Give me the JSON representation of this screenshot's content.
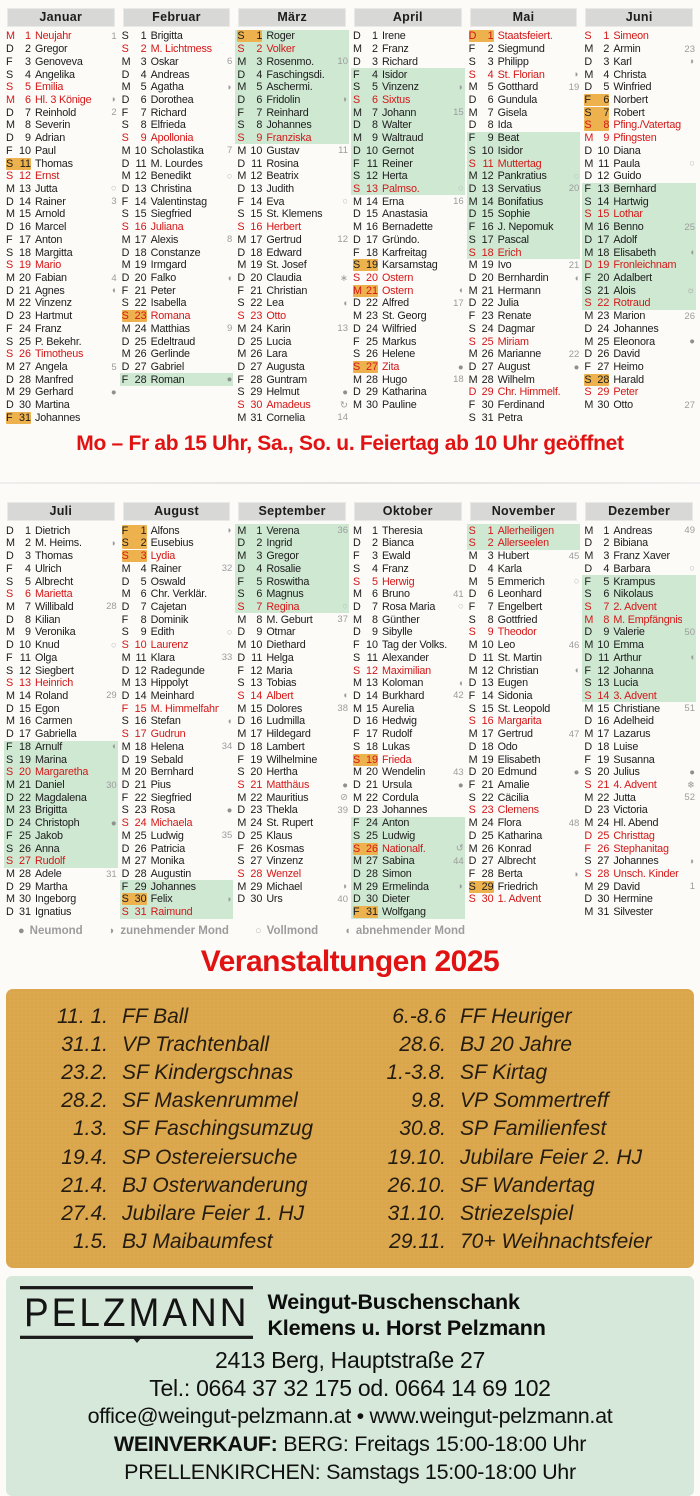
{
  "calendar": {
    "year": 2025,
    "months": [
      {
        "name": "Januar",
        "days": [
          "Neujahr",
          "Gregor",
          "Genoveva",
          "Angelika",
          "Emilia",
          "Hl. 3 Könige",
          "Reinhold",
          "Severin",
          "Adrian",
          "Paul",
          "Thomas",
          "Ernst",
          "Jutta",
          "Rainer",
          "Arnold",
          "Marcel",
          "Anton",
          "Margitta",
          "Mario",
          "Fabian",
          "Agnes",
          "Vinzenz",
          "Hartmut",
          "Franz",
          "P. Bekehr.",
          "Timotheus",
          "Angela",
          "Manfred",
          "Gerhard",
          "Martina",
          "Johannes"
        ],
        "red": [
          1,
          5,
          6,
          12,
          19,
          26
        ],
        "hl": [
          11,
          31
        ],
        "green": null,
        "weeks": {
          "1": 1,
          "7": 2,
          "14": 3,
          "20": 4,
          "27": 5
        },
        "sym": {
          "6": "wx",
          "13": "fm",
          "21": "wn",
          "29": "nm"
        }
      },
      {
        "name": "Februar",
        "days": [
          "Brigitta",
          "M. Lichtmess",
          "Oskar",
          "Andreas",
          "Agatha",
          "Dorothea",
          "Richard",
          "Elfrieda",
          "Apollonia",
          "Scholastika",
          "M. Lourdes",
          "Benedikt",
          "Christina",
          "Valentinstag",
          "Siegfried",
          "Juliana",
          "Alexis",
          "Constanze",
          "Irmgard",
          "Falko",
          "Peter",
          "Isabella",
          "Romana",
          "Matthias",
          "Edeltraud",
          "Gerlinde",
          "Gabriel",
          "Roman"
        ],
        "red": [
          2,
          9,
          16,
          23
        ],
        "hl": [
          23
        ],
        "green": [
          28,
          28
        ],
        "weeks": {
          "3": 6,
          "10": 7,
          "17": 8,
          "24": 9
        },
        "sym": {
          "5": "wx",
          "12": "fm",
          "20": "wn",
          "28": "nm"
        }
      },
      {
        "name": "März",
        "days": [
          "Roger",
          "Volker",
          "Rosenmo.",
          "Faschingsdi.",
          "Aschermi.",
          "Fridolin",
          "Reinhard",
          "Johannes",
          "Franziska",
          "Gustav",
          "Rosina",
          "Beatrix",
          "Judith",
          "Eva",
          "St. Klemens",
          "Herbert",
          "Gertrud",
          "Edward",
          "St. Josef",
          "Claudia",
          "Christian",
          "Lea",
          "Otto",
          "Karin",
          "Lucia",
          "Lara",
          "Augusta",
          "Guntram",
          "Helmut",
          "Amadeus",
          "Cornelia"
        ],
        "red": [
          2,
          9,
          16,
          23,
          30
        ],
        "hl": [
          1
        ],
        "green": [
          1,
          9
        ],
        "weeks": {
          "3": 10,
          "10": 11,
          "17": 12,
          "24": 13,
          "31": 14
        },
        "sym": {
          "6": "wx",
          "14": "fm",
          "20": "sp",
          "22": "wn",
          "29": "nm",
          "30": "cf"
        }
      },
      {
        "name": "April",
        "days": [
          "Irene",
          "Franz",
          "Richard",
          "Isidor",
          "Vinzenz",
          "Sixtus",
          "Johann",
          "Walter",
          "Waltraud",
          "Gernot",
          "Reiner",
          "Herta",
          "Palmso.",
          "Erna",
          "Anastasia",
          "Bernadette",
          "Gründo.",
          "Karfreitag",
          "Karsamstag",
          "Ostern",
          "Ostern",
          "Alfred",
          "St. Georg",
          "Wilfried",
          "Markus",
          "Helene",
          "Zita",
          "Hugo",
          "Katharina",
          "Pauline"
        ],
        "red": [
          6,
          13,
          20,
          21,
          27
        ],
        "hl": [
          19,
          21,
          27
        ],
        "green": [
          4,
          13
        ],
        "weeks": {
          "7": 15,
          "14": 16,
          "22": 17,
          "28": 18
        },
        "sym": {
          "5": "wx",
          "13": "fm",
          "21": "wn",
          "27": "nm"
        }
      },
      {
        "name": "Mai",
        "days": [
          "Staatsfeiert.",
          "Siegmund",
          "Philipp",
          "St. Florian",
          "Gotthard",
          "Gundula",
          "Gisela",
          "Ida",
          "Beat",
          "Isidor",
          "Muttertag",
          "Pankratius",
          "Servatius",
          "Bonifatius",
          "Sophie",
          "J. Nepomuk",
          "Pascal",
          "Erich",
          "Ivo",
          "Bernhardin",
          "Hermann",
          "Julia",
          "Renate",
          "Dagmar",
          "Miriam",
          "Marianne",
          "August",
          "Wilhelm",
          "Chr. Himmelf.",
          "Ferdinand",
          "Petra"
        ],
        "red": [
          1,
          4,
          11,
          18,
          25,
          29
        ],
        "hl": [
          1
        ],
        "green": [
          9,
          18
        ],
        "weeks": {
          "5": 19,
          "13": 20,
          "19": 21,
          "26": 22
        },
        "sym": {
          "4": "wx",
          "12": "fm",
          "20": "wn",
          "27": "nm"
        }
      },
      {
        "name": "Juni",
        "days": [
          "Simeon",
          "Armin",
          "Karl",
          "Christa",
          "Winfried",
          "Norbert",
          "Robert",
          "Pfing./Vatertag",
          "Pfingsten",
          "Diana",
          "Paula",
          "Guido",
          "Bernhard",
          "Hartwig",
          "Lothar",
          "Benno",
          "Adolf",
          "Elisabeth",
          "Fronleichnam",
          "Adalbert",
          "Alois",
          "Rotraud",
          "Marion",
          "Johannes",
          "Eleonora",
          "David",
          "Heimo",
          "Harald",
          "Peter",
          "Otto"
        ],
        "red": [
          1,
          8,
          9,
          15,
          19,
          22,
          29
        ],
        "hl": [
          6,
          7,
          8,
          28
        ],
        "green": [
          13,
          22
        ],
        "weeks": {
          "2": 23,
          "16": 25,
          "23": 26,
          "30": 27
        },
        "sym": {
          "3": "wx",
          "11": "fm",
          "18": "wn",
          "21": "su",
          "25": "nm"
        }
      },
      {
        "name": "Juli",
        "days": [
          "Dietrich",
          "M. Heims.",
          "Thomas",
          "Ulrich",
          "Albrecht",
          "Marietta",
          "Willibald",
          "Kilian",
          "Veronika",
          "Knud",
          "Olga",
          "Siegbert",
          "Heinrich",
          "Roland",
          "Egon",
          "Carmen",
          "Gabriella",
          "Arnulf",
          "Marina",
          "Margaretha",
          "Daniel",
          "Magdalena",
          "Brigitta",
          "Christoph",
          "Jakob",
          "Anna",
          "Rudolf",
          "Adele",
          "Martha",
          "Ingeborg",
          "Ignatius"
        ],
        "red": [
          6,
          13,
          20,
          27
        ],
        "hl": [],
        "green": [
          18,
          27
        ],
        "weeks": {
          "7": 28,
          "14": 29,
          "21": 30,
          "28": 31
        },
        "sym": {
          "2": "wx",
          "10": "fm",
          "18": "wn",
          "24": "nm"
        }
      },
      {
        "name": "August",
        "days": [
          "Alfons",
          "Eusebius",
          "Lydia",
          "Rainer",
          "Oswald",
          "Chr. Verklär.",
          "Cajetan",
          "Dominik",
          "Edith",
          "Laurenz",
          "Klara",
          "Radegunde",
          "Hippolyt",
          "Meinhard",
          "M. Himmelfahrt",
          "Stefan",
          "Gudrun",
          "Helena",
          "Sebald",
          "Bernhard",
          "Pius",
          "Siegfried",
          "Rosa",
          "Michaela",
          "Ludwig",
          "Patricia",
          "Monika",
          "Augustin",
          "Johannes",
          "Felix",
          "Raimund"
        ],
        "red": [
          3,
          10,
          15,
          17,
          24,
          31
        ],
        "hl": [
          1,
          2,
          3,
          30
        ],
        "green": [
          29,
          31
        ],
        "weeks": {
          "4": 32,
          "11": 33,
          "18": 34,
          "25": 35
        },
        "sym": {
          "1": "wx",
          "9": "fm",
          "16": "wn",
          "23": "nm",
          "30": "wx"
        }
      },
      {
        "name": "September",
        "days": [
          "Verena",
          "Ingrid",
          "Gregor",
          "Rosalie",
          "Roswitha",
          "Magnus",
          "Regina",
          "M. Geburt",
          "Otmar",
          "Diethard",
          "Helga",
          "Maria",
          "Tobias",
          "Albert",
          "Dolores",
          "Ludmilla",
          "Hildegard",
          "Lambert",
          "Wilhelmine",
          "Hertha",
          "Matthäus",
          "Mauritius",
          "Thekla",
          "St. Rupert",
          "Klaus",
          "Kosmas",
          "Vinzenz",
          "Wenzel",
          "Michael",
          "Urs"
        ],
        "red": [
          7,
          14,
          21,
          28
        ],
        "hl": [],
        "green": [
          1,
          7
        ],
        "weeks": {
          "1": 36,
          "8": 37,
          "15": 38,
          "23": 39,
          "30": 40
        },
        "sym": {
          "7": "fm",
          "14": "wn",
          "21": "nm",
          "22": "au",
          "29": "wx"
        }
      },
      {
        "name": "Oktober",
        "days": [
          "Theresia",
          "Bianca",
          "Ewald",
          "Franz",
          "Herwig",
          "Bruno",
          "Rosa Maria",
          "Günther",
          "Sibylle",
          "Tag der Volks.",
          "Alexander",
          "Maximilian",
          "Koloman",
          "Burkhard",
          "Aurelia",
          "Hedwig",
          "Rudolf",
          "Lukas",
          "Frieda",
          "Wendelin",
          "Ursula",
          "Cordula",
          "Johannes",
          "Anton",
          "Ludwig",
          "Nationalf.",
          "Sabina",
          "Simon",
          "Ermelinda",
          "Dieter",
          "Wolfgang"
        ],
        "red": [
          5,
          12,
          19,
          26
        ],
        "hl": [
          19,
          26,
          31
        ],
        "green": [
          24,
          31
        ],
        "weeks": {
          "6": 41,
          "14": 42,
          "20": 43,
          "27": 44
        },
        "sym": {
          "7": "fm",
          "13": "wn",
          "21": "nm",
          "26": "cb",
          "29": "wx"
        }
      },
      {
        "name": "November",
        "days": [
          "Allerheiligen",
          "Allerseelen",
          "Hubert",
          "Karla",
          "Emmerich",
          "Leonhard",
          "Engelbert",
          "Gottfried",
          "Theodor",
          "Leo",
          "St. Martin",
          "Christian",
          "Eugen",
          "Sidonia",
          "St. Leopold",
          "Margarita",
          "Gertrud",
          "Odo",
          "Elisabeth",
          "Edmund",
          "Amalie",
          "Cäcilia",
          "Clemens",
          "Flora",
          "Katharina",
          "Konrad",
          "Albrecht",
          "Berta",
          "Friedrich",
          "1. Advent"
        ],
        "red": [
          1,
          2,
          9,
          16,
          23,
          30
        ],
        "hl": [
          29
        ],
        "green": [
          1,
          2
        ],
        "weeks": {
          "3": 45,
          "10": 46,
          "17": 47,
          "24": 48
        },
        "sym": {
          "5": "fm",
          "12": "wn",
          "20": "nm",
          "28": "wx"
        }
      },
      {
        "name": "Dezember",
        "days": [
          "Andreas",
          "Bibiana",
          "Franz Xaver",
          "Barbara",
          "Krampus",
          "Nikolaus",
          "2. Advent",
          "M. Empfängnis",
          "Valerie",
          "Emma",
          "Arthur",
          "Johanna",
          "Lucia",
          "3. Advent",
          "Christiane",
          "Adelheid",
          "Lazarus",
          "Luise",
          "Susanna",
          "Julius",
          "4. Advent",
          "Jutta",
          "Victoria",
          "Hl. Abend",
          "Christtag",
          "Stephanitag",
          "Johannes",
          "Unsch. Kinder",
          "David",
          "Hermine",
          "Silvester"
        ],
        "red": [
          7,
          8,
          14,
          21,
          25,
          26,
          28
        ],
        "hl": [],
        "green": [
          5,
          14
        ],
        "weeks": {
          "1": 49,
          "9": 50,
          "15": 51,
          "22": 52,
          "29": 1
        },
        "sym": {
          "4": "fm",
          "11": "wn",
          "20": "nm",
          "21": "wi",
          "27": "wx"
        }
      }
    ]
  },
  "open_hours_note": "Mo – Fr ab 15 Uhr, Sa., So. u. Feiertag ab 10 Uhr geöffnet",
  "legend": {
    "items": [
      {
        "sym": "nm",
        "label": "Neumond"
      },
      {
        "sym": "wx",
        "label": "zunehmender Mond"
      },
      {
        "sym": "fm",
        "label": "Vollmond"
      },
      {
        "sym": "wn",
        "label": "abnehmender Mond"
      }
    ]
  },
  "events": {
    "title": "Veranstaltungen 2025",
    "left": [
      {
        "date": "11. 1.",
        "name": "FF Ball"
      },
      {
        "date": "31.1.",
        "name": "VP Trachtenball"
      },
      {
        "date": "23.2.",
        "name": "SF Kindergschnas"
      },
      {
        "date": "28.2.",
        "name": "SF Maskenrummel"
      },
      {
        "date": "1.3.",
        "name": "SF Faschingsumzug"
      },
      {
        "date": "19.4.",
        "name": "SP Ostereiersuche"
      },
      {
        "date": "21.4.",
        "name": "BJ Osterwanderung"
      },
      {
        "date": "27.4.",
        "name": "Jubilare Feier 1. HJ"
      },
      {
        "date": "1.5.",
        "name": "BJ Maibaumfest"
      }
    ],
    "right": [
      {
        "date": "6.-8.6",
        "name": "FF Heuriger"
      },
      {
        "date": "28.6.",
        "name": "BJ 20 Jahre"
      },
      {
        "date": "1.-3.8.",
        "name": "SF Kirtag"
      },
      {
        "date": "9.8.",
        "name": "VP Sommertreff"
      },
      {
        "date": "30.8.",
        "name": "SP Familienfest"
      },
      {
        "date": "19.10.",
        "name": "Jubilare Feier 2. HJ"
      },
      {
        "date": "26.10.",
        "name": "SF Wandertag"
      },
      {
        "date": "31.10.",
        "name": "Striezelspiel"
      },
      {
        "date": "29.11.",
        "name": "70+ Weihnachtsfeier"
      }
    ]
  },
  "footer": {
    "logo_text": "PELZMANN",
    "title_line1": "Weingut-Buschenschank",
    "title_line2": "Klemens u. Horst Pelzmann",
    "address": "2413 Berg, Hauptstraße 27",
    "phone": "Tel.: 0664 37 32 175 od. 0664 14 69 102",
    "web": "office@weingut-pelzmann.at • www.weingut-pelzmann.at",
    "sale_label": "WEINVERKAUF:",
    "sale_text": "BERG: Freitags 15:00-18:00 Uhr",
    "sale_line2": "PRELLENKIRCHEN: Samstags 15:00-18:00 Uhr"
  }
}
